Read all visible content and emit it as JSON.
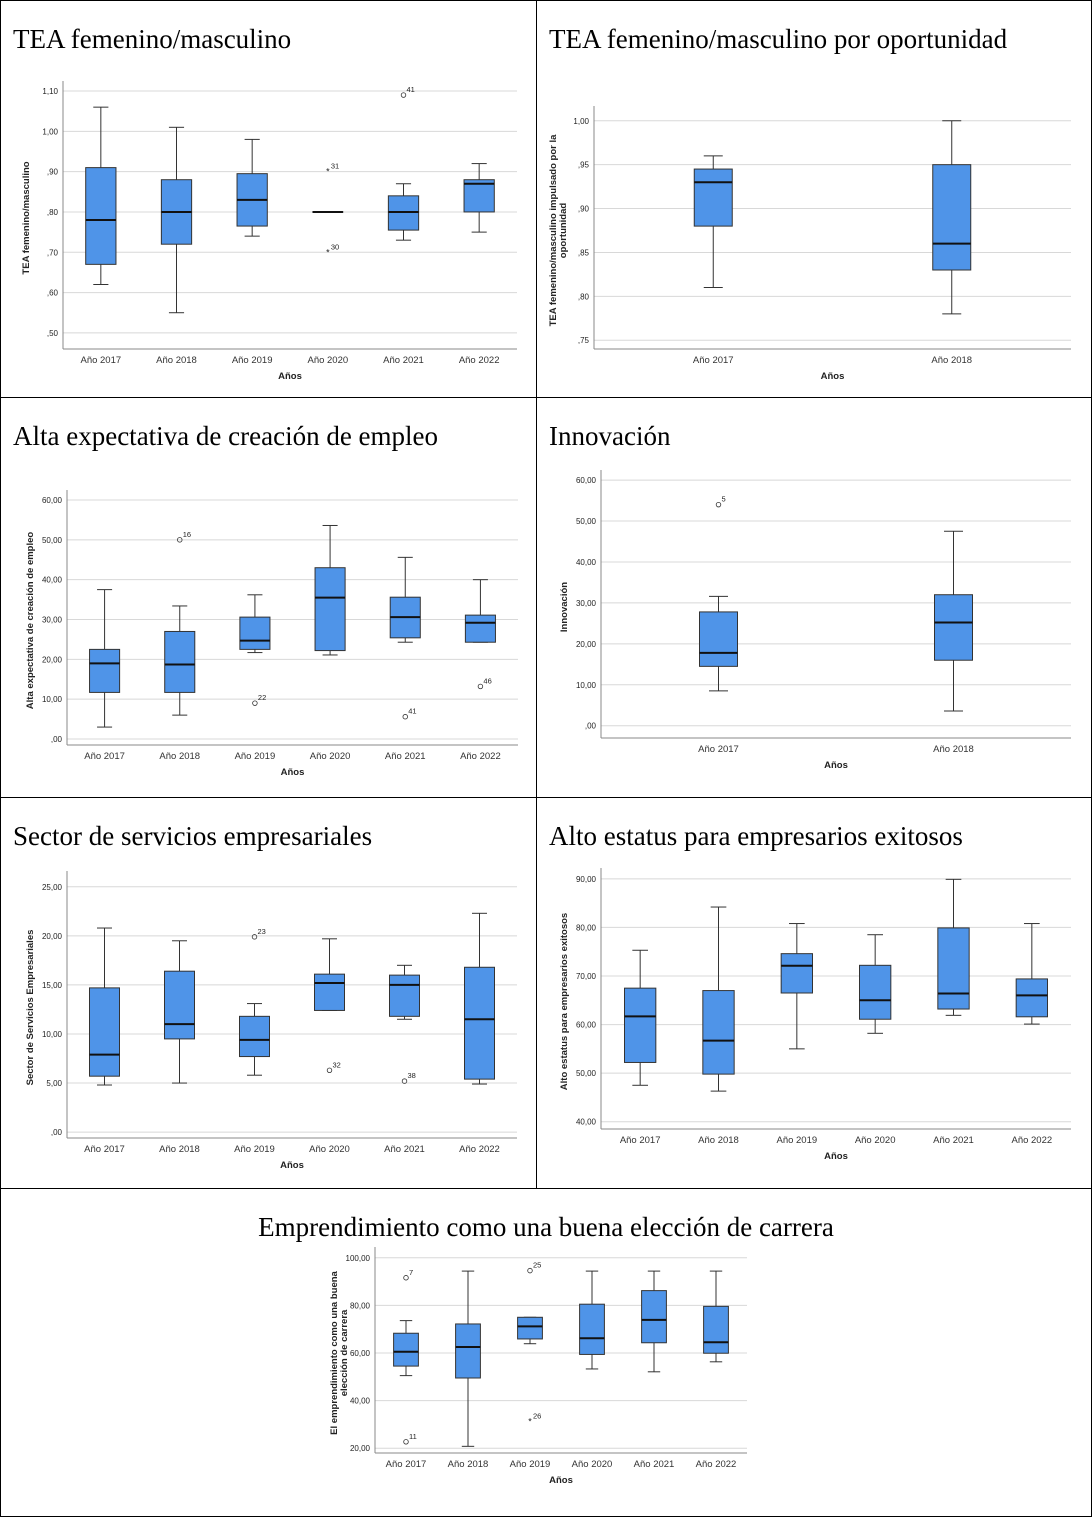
{
  "panels": [
    {
      "title": "TEA femenino/masculino",
      "chart_data": {
        "type": "boxplot",
        "ylabel": "TEA femenino/masculino",
        "xlabel": "Años",
        "ylim": [
          0.46,
          1.11
        ],
        "yticks": [
          0.5,
          0.6,
          0.7,
          0.8,
          0.9,
          1.0,
          1.1
        ],
        "ytick_labels": [
          ",50",
          ",60",
          ",70",
          ",80",
          ",90",
          "1,00",
          "1,10"
        ],
        "categories": [
          "Año 2017",
          "Año 2018",
          "Año 2019",
          "Año 2020",
          "Año 2021",
          "Año 2022"
        ],
        "boxes": [
          {
            "min": 0.62,
            "q1": 0.67,
            "median": 0.78,
            "q3": 0.91,
            "max": 1.06
          },
          {
            "min": 0.55,
            "q1": 0.72,
            "median": 0.8,
            "q3": 0.88,
            "max": 1.01
          },
          {
            "min": 0.74,
            "q1": 0.765,
            "median": 0.83,
            "q3": 0.895,
            "max": 0.98
          },
          {
            "min": 0.8,
            "q1": 0.8,
            "median": 0.8,
            "q3": 0.8,
            "max": 0.8
          },
          {
            "min": 0.73,
            "q1": 0.755,
            "median": 0.8,
            "q3": 0.84,
            "max": 0.87
          },
          {
            "min": 0.75,
            "q1": 0.8,
            "median": 0.87,
            "q3": 0.88,
            "max": 0.92
          }
        ],
        "outliers": [
          {
            "category": 3,
            "value": 0.9,
            "label": "31",
            "marker": "star"
          },
          {
            "category": 3,
            "value": 0.7,
            "label": "30",
            "marker": "star"
          },
          {
            "category": 4,
            "value": 1.09,
            "label": "41",
            "marker": "circle"
          }
        ],
        "color": "#4f94e8"
      }
    },
    {
      "title": "TEA femenino/masculino por oportunidad",
      "chart_data": {
        "type": "boxplot",
        "ylabel": "TEA femenino/masculino impulsado por la oportunidad",
        "xlabel": "Años",
        "ylim": [
          0.74,
          1.01
        ],
        "yticks": [
          0.75,
          0.8,
          0.85,
          0.9,
          0.95,
          1.0
        ],
        "ytick_labels": [
          ",75",
          ",80",
          ",85",
          ",90",
          ",95",
          "1,00"
        ],
        "categories": [
          "Año 2017",
          "Año 2018"
        ],
        "boxes": [
          {
            "min": 0.81,
            "q1": 0.88,
            "median": 0.93,
            "q3": 0.945,
            "max": 0.96
          },
          {
            "min": 0.78,
            "q1": 0.83,
            "median": 0.86,
            "q3": 0.95,
            "max": 1.0
          }
        ],
        "outliers": [],
        "color": "#4f94e8"
      }
    },
    {
      "title": "Alta expectativa de creación de empleo",
      "chart_data": {
        "type": "boxplot",
        "ylabel": "Alta expectativa de creación de empleo",
        "xlabel": "Años",
        "ylim": [
          -1.5,
          61
        ],
        "yticks": [
          0,
          10,
          20,
          30,
          40,
          50,
          60
        ],
        "ytick_labels": [
          ",00",
          "10,00",
          "20,00",
          "30,00",
          "40,00",
          "50,00",
          "60,00"
        ],
        "categories": [
          "Año 2017",
          "Año 2018",
          "Año 2019",
          "Año 2020",
          "Año 2021",
          "Año 2022"
        ],
        "boxes": [
          {
            "min": 3.0,
            "q1": 11.7,
            "median": 19.0,
            "q3": 22.5,
            "max": 37.5
          },
          {
            "min": 6.0,
            "q1": 11.7,
            "median": 18.7,
            "q3": 27.0,
            "max": 33.4
          },
          {
            "min": 21.7,
            "q1": 22.5,
            "median": 24.7,
            "q3": 30.6,
            "max": 36.2
          },
          {
            "min": 21.1,
            "q1": 22.2,
            "median": 35.5,
            "q3": 43.0,
            "max": 53.6
          },
          {
            "min": 24.3,
            "q1": 25.4,
            "median": 30.6,
            "q3": 35.6,
            "max": 45.6
          },
          {
            "min": 24.3,
            "q1": 24.3,
            "median": 29.2,
            "q3": 31.1,
            "max": 40.0
          }
        ],
        "outliers": [
          {
            "category": 1,
            "value": 50.0,
            "label": "16",
            "marker": "circle"
          },
          {
            "category": 2,
            "value": 9.0,
            "label": "22",
            "marker": "circle"
          },
          {
            "category": 4,
            "value": 5.6,
            "label": "41",
            "marker": "circle"
          },
          {
            "category": 5,
            "value": 13.2,
            "label": "46",
            "marker": "circle"
          }
        ],
        "color": "#4f94e8"
      }
    },
    {
      "title": "Innovación",
      "chart_data": {
        "type": "boxplot",
        "ylabel": "Innovación",
        "xlabel": "Años",
        "ylim": [
          -3,
          61
        ],
        "yticks": [
          0,
          10,
          20,
          30,
          40,
          50,
          60
        ],
        "ytick_labels": [
          ",00",
          "10,00",
          "20,00",
          "30,00",
          "40,00",
          "50,00",
          "60,00"
        ],
        "categories": [
          "Año 2017",
          "Año 2018"
        ],
        "boxes": [
          {
            "min": 8.5,
            "q1": 14.5,
            "median": 17.8,
            "q3": 27.8,
            "max": 31.6
          },
          {
            "min": 3.6,
            "q1": 16.0,
            "median": 25.2,
            "q3": 32.0,
            "max": 47.5
          }
        ],
        "outliers": [
          {
            "category": 0,
            "value": 54.0,
            "label": "5",
            "marker": "circle"
          }
        ],
        "color": "#4f94e8"
      }
    },
    {
      "title": "Sector de servicios empresariales",
      "chart_data": {
        "type": "boxplot",
        "ylabel": "Sector de Servicios Empresariales",
        "xlabel": "Años",
        "ylim": [
          -0.6,
          26
        ],
        "yticks": [
          0,
          5,
          10,
          15,
          20,
          25
        ],
        "ytick_labels": [
          ",00",
          "5,00",
          "10,00",
          "15,00",
          "20,00",
          "25,00"
        ],
        "categories": [
          "Año 2017",
          "Año 2018",
          "Año 2019",
          "Año 2020",
          "Año 2021",
          "Año 2022"
        ],
        "boxes": [
          {
            "min": 4.8,
            "q1": 5.7,
            "median": 7.9,
            "q3": 14.7,
            "max": 20.8
          },
          {
            "min": 5.0,
            "q1": 9.5,
            "median": 11.0,
            "q3": 16.4,
            "max": 19.5
          },
          {
            "min": 5.8,
            "q1": 7.7,
            "median": 9.4,
            "q3": 11.8,
            "max": 13.1
          },
          {
            "min": 12.4,
            "q1": 12.4,
            "median": 15.2,
            "q3": 16.1,
            "max": 19.7
          },
          {
            "min": 11.5,
            "q1": 11.8,
            "median": 15.0,
            "q3": 16.0,
            "max": 17.0
          },
          {
            "min": 4.9,
            "q1": 5.4,
            "median": 11.5,
            "q3": 16.8,
            "max": 22.3
          }
        ],
        "outliers": [
          {
            "category": 2,
            "value": 19.9,
            "label": "23",
            "marker": "circle"
          },
          {
            "category": 3,
            "value": 6.3,
            "label": "32",
            "marker": "circle"
          },
          {
            "category": 4,
            "value": 5.2,
            "label": "38",
            "marker": "circle"
          }
        ],
        "color": "#4f94e8"
      }
    },
    {
      "title": "Alto estatus para empresarios exitosos",
      "chart_data": {
        "type": "boxplot",
        "ylabel": "Alto estatus para empresarios exitosos",
        "xlabel": "Años",
        "ylim": [
          38.5,
          91
        ],
        "yticks": [
          40,
          50,
          60,
          70,
          80,
          90
        ],
        "ytick_labels": [
          "40,00",
          "50,00",
          "60,00",
          "70,00",
          "80,00",
          "90,00"
        ],
        "categories": [
          "Año 2017",
          "Año 2018",
          "Año 2019",
          "Año 2020",
          "Año 2021",
          "Año 2022"
        ],
        "boxes": [
          {
            "min": 47.5,
            "q1": 52.2,
            "median": 61.7,
            "q3": 67.5,
            "max": 75.3
          },
          {
            "min": 46.3,
            "q1": 49.8,
            "median": 56.7,
            "q3": 67.0,
            "max": 84.2
          },
          {
            "min": 55.0,
            "q1": 66.5,
            "median": 72.1,
            "q3": 74.6,
            "max": 80.8
          },
          {
            "min": 58.2,
            "q1": 61.1,
            "median": 65.0,
            "q3": 72.2,
            "max": 78.5
          },
          {
            "min": 61.9,
            "q1": 63.2,
            "median": 66.4,
            "q3": 79.9,
            "max": 89.9
          },
          {
            "min": 60.1,
            "q1": 61.6,
            "median": 66.0,
            "q3": 69.4,
            "max": 80.8
          }
        ],
        "outliers": [],
        "color": "#4f94e8"
      }
    },
    {
      "title": "Emprendimiento como una buena elección de carrera",
      "chart_data": {
        "type": "boxplot",
        "ylabel": "El emprendimiento como una buena elección de carrera",
        "xlabel": "Años",
        "ylim": [
          18,
          102
        ],
        "yticks": [
          20,
          40,
          60,
          80,
          100
        ],
        "ytick_labels": [
          "20,00",
          "40,00",
          "60,00",
          "80,00",
          "100,00"
        ],
        "categories": [
          "Año 2017",
          "Año 2018",
          "Año 2019",
          "Año 2020",
          "Año 2021",
          "Año 2022"
        ],
        "boxes": [
          {
            "min": 50.5,
            "q1": 54.5,
            "median": 60.5,
            "q3": 68.3,
            "max": 73.6
          },
          {
            "min": 20.8,
            "q1": 49.5,
            "median": 62.5,
            "q3": 72.2,
            "max": 94.4
          },
          {
            "min": 63.9,
            "q1": 65.9,
            "median": 71.2,
            "q3": 75.0,
            "max": 75.0
          },
          {
            "min": 53.3,
            "q1": 59.4,
            "median": 66.2,
            "q3": 80.5,
            "max": 94.4
          },
          {
            "min": 52.1,
            "q1": 64.3,
            "median": 73.9,
            "q3": 86.2,
            "max": 94.4
          },
          {
            "min": 56.3,
            "q1": 59.9,
            "median": 64.5,
            "q3": 79.6,
            "max": 94.4
          }
        ],
        "outliers": [
          {
            "category": 0,
            "value": 91.6,
            "label": "7",
            "marker": "circle"
          },
          {
            "category": 0,
            "value": 22.7,
            "label": "11",
            "marker": "circle"
          },
          {
            "category": 2,
            "value": 94.6,
            "label": "25",
            "marker": "circle"
          },
          {
            "category": 2,
            "value": 31.2,
            "label": "26",
            "marker": "star"
          }
        ],
        "color": "#4f94e8"
      }
    }
  ]
}
